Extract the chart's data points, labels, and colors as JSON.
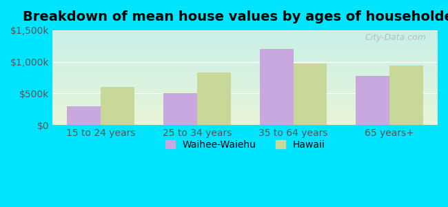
{
  "title": "Breakdown of mean house values by ages of householders",
  "categories": [
    "15 to 24 years",
    "25 to 34 years",
    "35 to 64 years",
    "65 years+"
  ],
  "waihee_values": [
    300000,
    500000,
    1200000,
    775000
  ],
  "hawaii_values": [
    600000,
    830000,
    975000,
    940000
  ],
  "waihee_color": "#c9a8e0",
  "hawaii_color": "#c8d898",
  "ylim": [
    0,
    1500000
  ],
  "yticks": [
    0,
    500000,
    1000000,
    1500000
  ],
  "ytick_labels": [
    "$0",
    "$500k",
    "$1,000k",
    "$1,500k"
  ],
  "legend_waihee": "Waihee-Waiehu",
  "legend_hawaii": "Hawaii",
  "background_outer": "#00e5ff",
  "background_plot_top": "#c8f0e8",
  "background_plot_bottom": "#e8f5d8",
  "title_fontsize": 14,
  "tick_fontsize": 10,
  "bar_width": 0.35,
  "watermark": "City-Data.com"
}
